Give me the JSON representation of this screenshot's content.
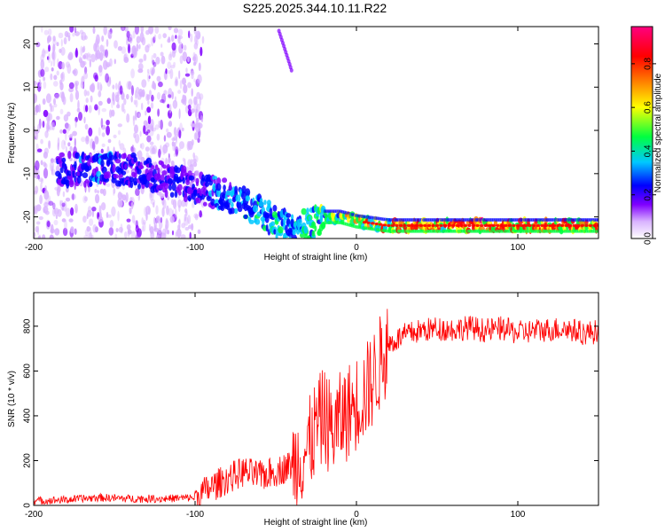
{
  "title": "S225.2025.344.10.11.R22",
  "chart_data": [
    {
      "type": "heatmap",
      "xlabel": "Height of straight line (km)",
      "ylabel": "Frequency (Hz)",
      "xlim": [
        -200,
        150
      ],
      "ylim": [
        -25,
        24
      ],
      "xticks": [
        -200,
        -100,
        0,
        100
      ],
      "yticks": [
        -20,
        -10,
        0,
        10,
        20
      ],
      "colorbar": {
        "label": "Normalized spectral amplitude",
        "range": [
          0,
          0.97
        ],
        "ticks": [
          0.0,
          0.2,
          0.4,
          0.6,
          0.8
        ],
        "colors": [
          "#ffffff",
          "#d9b3ff",
          "#8000ff",
          "#0000ff",
          "#00c8ff",
          "#00ff40",
          "#ffff00",
          "#ff8000",
          "#ff0000",
          "#ff0080"
        ]
      },
      "ridge": {
        "x": [
          -180,
          -160,
          -140,
          -120,
          -100,
          -90,
          -80,
          -70,
          -60,
          -50,
          -40,
          -30,
          -20,
          -10,
          0,
          20,
          50,
          100,
          150
        ],
        "frequency": [
          -9,
          -9,
          -9,
          -11,
          -13,
          -14,
          -15,
          -17,
          -19,
          -21,
          -23,
          -22,
          -20,
          -20,
          -21,
          -22,
          -22,
          -22,
          -22
        ],
        "amplitude": [
          0.35,
          0.4,
          0.35,
          0.3,
          0.35,
          0.4,
          0.45,
          0.5,
          0.5,
          0.55,
          0.5,
          0.55,
          0.6,
          0.7,
          0.8,
          0.85,
          0.9,
          0.9,
          0.9
        ]
      },
      "scatter_region": {
        "x": [
          -200,
          -95
        ],
        "frequency": [
          -25,
          24
        ]
      }
    },
    {
      "type": "line",
      "xlabel": "Height of straight line (km)",
      "ylabel": "SNR (10 * v/v)",
      "xlim": [
        -200,
        150
      ],
      "ylim": [
        0,
        950
      ],
      "xticks": [
        -200,
        -100,
        0,
        100
      ],
      "yticks": [
        0,
        200,
        400,
        600,
        800
      ],
      "series": [
        {
          "color": "#ff0000",
          "x": [
            -200,
            -180,
            -160,
            -140,
            -120,
            -100,
            -90,
            -80,
            -70,
            -60,
            -50,
            -40,
            -30,
            -25,
            -20,
            -15,
            -10,
            -5,
            0,
            5,
            10,
            15,
            20,
            25,
            30,
            40,
            50,
            60,
            70,
            80,
            90,
            100,
            110,
            120,
            130,
            140,
            150
          ],
          "y": [
            20,
            25,
            35,
            30,
            30,
            35,
            80,
            120,
            150,
            130,
            150,
            180,
            250,
            350,
            400,
            330,
            380,
            420,
            460,
            500,
            560,
            640,
            720,
            740,
            760,
            780,
            790,
            785,
            795,
            780,
            790,
            770,
            780,
            785,
            790,
            770,
            775
          ]
        }
      ]
    }
  ]
}
